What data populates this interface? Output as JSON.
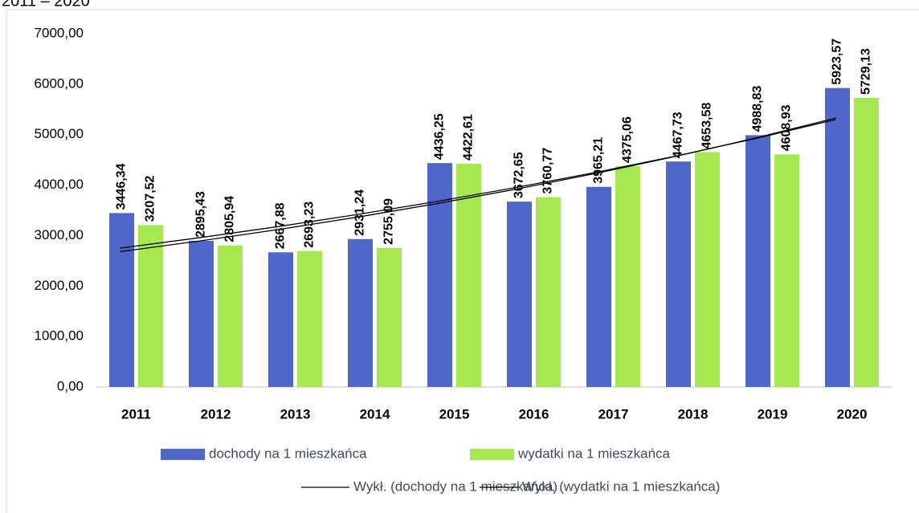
{
  "chart_data": {
    "type": "bar",
    "title": "2011 – 2020",
    "categories": [
      "2011",
      "2012",
      "2013",
      "2014",
      "2015",
      "2016",
      "2017",
      "2018",
      "2019",
      "2020"
    ],
    "series": [
      {
        "name": "dochody na 1 mieszkańca",
        "color": "#4f67c9",
        "values": [
          3446.34,
          2895.43,
          2667.88,
          2931.24,
          4436.25,
          3672.65,
          3965.21,
          4467.73,
          4988.83,
          5923.57
        ],
        "value_labels": [
          "3446,34",
          "2895,43",
          "2667,88",
          "2931,24",
          "4436,25",
          "3672,65",
          "3965,21",
          "4467,73",
          "4988,83",
          "5923,57"
        ]
      },
      {
        "name": "wydatki na 1 mieszkańca",
        "color": "#a6e84f",
        "values": [
          3207.52,
          2805.94,
          2693.23,
          2755.09,
          4422.61,
          3760.77,
          4375.06,
          4653.58,
          4608.93,
          5729.13
        ],
        "value_labels": [
          "3207,52",
          "2805,94",
          "2693,23",
          "2755,09",
          "4422,61",
          "3760,77",
          "4375,06",
          "4653,58",
          "4608,93",
          "5729,13"
        ]
      }
    ],
    "trendlines": [
      {
        "name": "Wykł. (dochody na 1 mieszkańca)",
        "color": "#000000",
        "values": [
          2750,
          2958,
          3181,
          3422,
          3681,
          3959,
          4258,
          4580,
          4927,
          5300
        ]
      },
      {
        "name": "Wykł. (wydatki na 1 mieszkańca)",
        "color": "#000000",
        "values": [
          2680,
          2893,
          3122,
          3370,
          3638,
          3926,
          4238,
          4574,
          4937,
          5330
        ]
      }
    ],
    "ylim": [
      0,
      7000
    ],
    "yticks": [
      {
        "value": 0,
        "label": "0,00"
      },
      {
        "value": 1000,
        "label": "1000,00"
      },
      {
        "value": 2000,
        "label": "2000,00"
      },
      {
        "value": 3000,
        "label": "3000,00"
      },
      {
        "value": 4000,
        "label": "4000,00"
      },
      {
        "value": 5000,
        "label": "5000,00"
      },
      {
        "value": 6000,
        "label": "6000,00"
      },
      {
        "value": 7000,
        "label": "7000,00"
      }
    ],
    "grid": false
  }
}
